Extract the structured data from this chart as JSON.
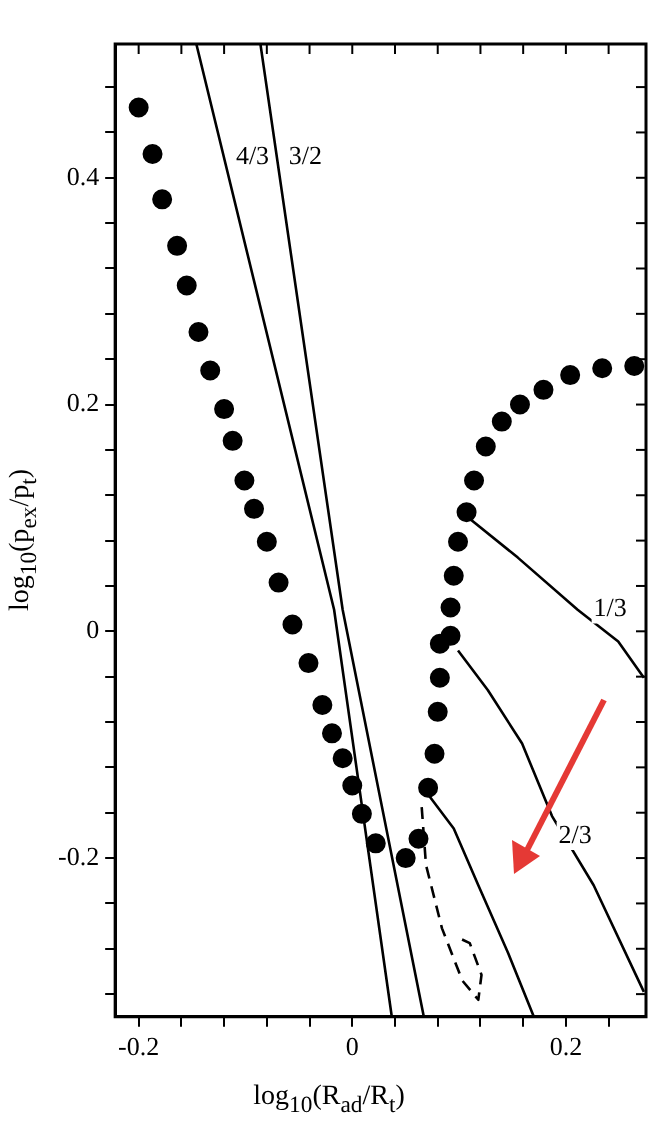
{
  "chart_data": {
    "type": "scatter",
    "xlabel": "log$_{10}$(R$_{ad}$/R$_{t}$)",
    "ylabel": "log$_{10}$(p$_{ex}$/p$_{t}$)",
    "xlim": [
      -0.222,
      0.275
    ],
    "ylim": [
      -0.34,
      0.518
    ],
    "xticks": [
      -0.2,
      {
        "value": -0.16,
        "label": null
      },
      {
        "value": -0.12,
        "label": null
      },
      {
        "value": -0.08,
        "label": null
      },
      {
        "value": -0.04,
        "label": null
      },
      0,
      {
        "value": 0.04,
        "label": null
      },
      {
        "value": 0.08,
        "label": null
      },
      {
        "value": 0.12,
        "label": null
      },
      {
        "value": 0.16,
        "label": null
      },
      0.2,
      {
        "value": 0.24,
        "label": null
      }
    ],
    "yticks": [
      {
        "value": -0.32,
        "label": null
      },
      {
        "value": -0.28,
        "label": null
      },
      {
        "value": -0.24,
        "label": null
      },
      -0.2,
      {
        "value": -0.16,
        "label": null
      },
      {
        "value": -0.12,
        "label": null
      },
      {
        "value": -0.08,
        "label": null
      },
      {
        "value": -0.04,
        "label": null
      },
      0,
      {
        "value": 0.04,
        "label": null
      },
      {
        "value": 0.08,
        "label": null
      },
      {
        "value": 0.12,
        "label": null
      },
      {
        "value": 0.16,
        "label": null
      },
      0.2,
      {
        "value": 0.24,
        "label": null
      },
      {
        "value": 0.28,
        "label": null
      },
      {
        "value": 0.32,
        "label": null
      },
      {
        "value": 0.36,
        "label": null
      },
      0.4,
      {
        "value": 0.44,
        "label": null
      },
      {
        "value": 0.48,
        "label": null
      }
    ],
    "grid": false,
    "series": [
      {
        "color": "#000000",
        "marker": "circle",
        "x": [
          -0.2,
          -0.187,
          -0.178,
          -0.164,
          -0.155,
          -0.144,
          -0.133,
          -0.12,
          -0.112,
          -0.101,
          -0.092,
          -0.08,
          -0.069,
          -0.056,
          -0.041,
          -0.028,
          -0.019,
          -0.009,
          0.0,
          0.009,
          0.022,
          0.05,
          0.062,
          0.071,
          0.077,
          0.08,
          0.082,
          0.082,
          0.092,
          0.092,
          0.095,
          0.099,
          0.107,
          0.114,
          0.125,
          0.14,
          0.157,
          0.179,
          0.204,
          0.234,
          0.264
        ],
        "values": [
          0.462,
          0.421,
          0.381,
          0.34,
          0.305,
          0.264,
          0.23,
          0.196,
          0.168,
          0.133,
          0.108,
          0.079,
          0.043,
          0.006,
          -0.028,
          -0.065,
          -0.09,
          -0.112,
          -0.136,
          -0.161,
          -0.187,
          -0.2,
          -0.183,
          -0.138,
          -0.108,
          -0.071,
          -0.041,
          -0.011,
          -0.004,
          0.021,
          0.049,
          0.079,
          0.105,
          0.133,
          0.163,
          0.185,
          0.2,
          0.213,
          0.226,
          0.232,
          0.234
        ]
      },
      {
        "type": "line",
        "name": "4/3",
        "color": "#000000",
        "marker": "none",
        "x": [
          -0.146,
          -0.017,
          0.037
        ],
        "values": [
          0.518,
          0.019,
          -0.34
        ]
      },
      {
        "type": "line",
        "name": "3/2",
        "color": "#000000",
        "marker": "none",
        "x": [
          -0.086,
          -0.009,
          0.067
        ],
        "values": [
          0.518,
          0.019,
          -0.34
        ]
      },
      {
        "type": "line",
        "color": "#000000",
        "marker": "none",
        "line_style": "dashed",
        "x": [
          0.065,
          0.069,
          0.084,
          0.103,
          0.118,
          0.121,
          0.11,
          0.101
        ],
        "values": [
          -0.155,
          -0.206,
          -0.262,
          -0.308,
          -0.325,
          -0.303,
          -0.275,
          -0.271
        ]
      },
      {
        "type": "line",
        "color": "#000000",
        "marker": "none",
        "x": [
          0.071,
          0.095,
          0.118,
          0.146,
          0.17
        ],
        "values": [
          -0.144,
          -0.174,
          -0.224,
          -0.284,
          -0.34
        ]
      },
      {
        "type": "line",
        "name": "2/3",
        "color": "#000000",
        "marker": "none",
        "x": [
          0.099,
          0.127,
          0.159,
          0.187,
          0.226,
          0.273
        ],
        "values": [
          -0.017,
          -0.052,
          -0.099,
          -0.163,
          -0.224,
          -0.318
        ]
      },
      {
        "type": "line",
        "name": "1/3",
        "color": "#000000",
        "marker": "none",
        "x": [
          0.105,
          0.155,
          0.211,
          0.249,
          0.273
        ],
        "values": [
          0.103,
          0.065,
          0.019,
          -0.009,
          -0.041
        ]
      }
    ]
  }
}
